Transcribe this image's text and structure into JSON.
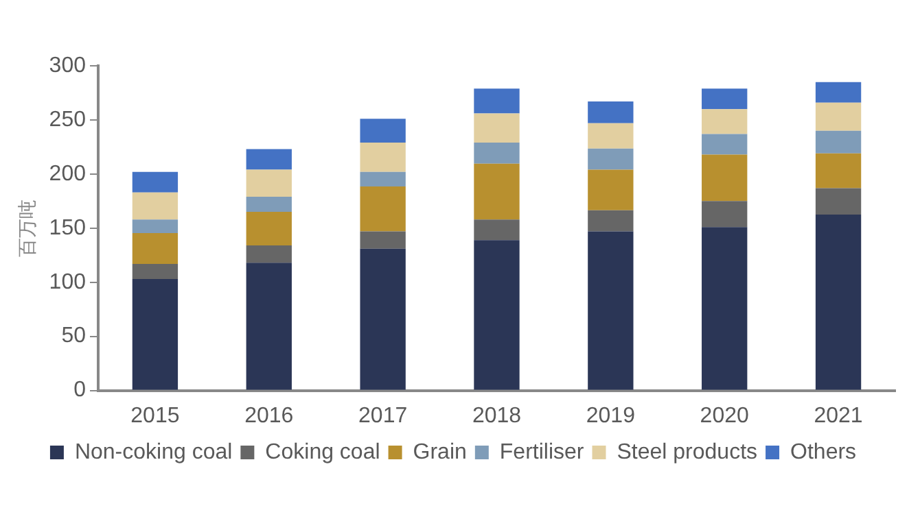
{
  "chart_data": {
    "type": "bar",
    "stacked": true,
    "ylabel": "百万吨",
    "categories": [
      "2015",
      "2016",
      "2017",
      "2018",
      "2019",
      "2020",
      "2021"
    ],
    "series": [
      {
        "name": "Non-coking coal",
        "color": "#2b3656",
        "values": [
          103,
          118,
          131,
          139,
          147,
          151,
          162.5
        ]
      },
      {
        "name": "Coking coal",
        "color": "#666666",
        "values": [
          14,
          16,
          16,
          19,
          19.5,
          24,
          24.5
        ]
      },
      {
        "name": "Grain",
        "color": "#b8902f",
        "values": [
          28.5,
          31,
          41.5,
          51.5,
          37.5,
          43,
          32
        ]
      },
      {
        "name": "Fertiliser",
        "color": "#7f9cb8",
        "values": [
          12.5,
          14,
          13.5,
          19.5,
          19.5,
          19,
          21
        ]
      },
      {
        "name": "Steel products",
        "color": "#e2cfa0",
        "values": [
          25,
          25,
          27,
          27,
          23.5,
          23,
          26
        ]
      },
      {
        "name": "Others",
        "color": "#4472c4",
        "values": [
          19,
          19,
          22,
          23,
          20,
          19,
          19
        ]
      }
    ],
    "ylim": [
      0,
      300
    ],
    "yticks": [
      0,
      50,
      100,
      150,
      200,
      250,
      300
    ],
    "grid": false,
    "legend": "bottom"
  }
}
